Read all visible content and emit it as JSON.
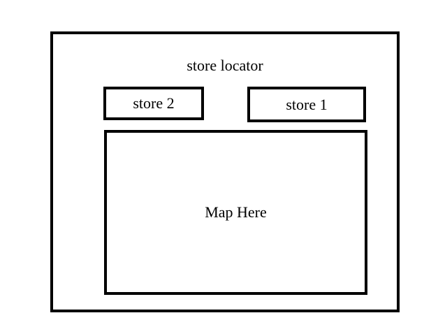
{
  "page": {
    "title": "store locator"
  },
  "stores": [
    {
      "label": "store 2"
    },
    {
      "label": "store 1"
    }
  ],
  "map": {
    "placeholder": "Map Here"
  }
}
